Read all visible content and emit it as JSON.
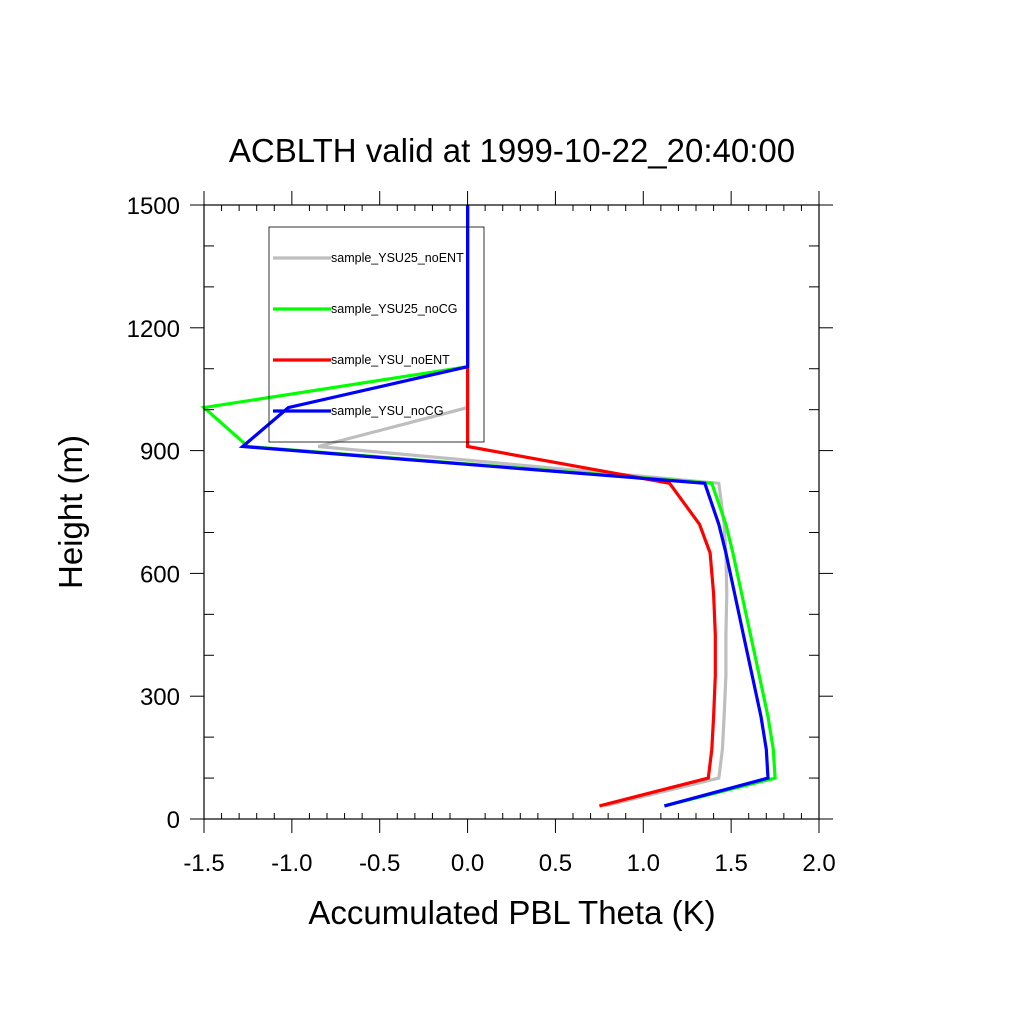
{
  "chart_data": {
    "type": "line",
    "title": "ACBLTH valid at 1999-10-22_20:40:00",
    "xlabel": "Accumulated PBL Theta (K)",
    "ylabel": "Height (m)",
    "xlim": [
      -1.5,
      2.0
    ],
    "ylim": [
      0,
      1500
    ],
    "xticks": [
      -1.5,
      -1.0,
      -0.5,
      0.0,
      0.5,
      1.0,
      1.5,
      2.0
    ],
    "xtick_labels": [
      "-1.5",
      "-1.0",
      "-0.5",
      "0.0",
      "0.5",
      "1.0",
      "1.5",
      "2.0"
    ],
    "yticks": [
      0,
      300,
      600,
      900,
      1200,
      1500
    ],
    "ytick_labels": [
      "0",
      "300",
      "600",
      "900",
      "1200",
      "1500"
    ],
    "grid": false,
    "legend_position": "top-left",
    "series": [
      {
        "name": "sample_YSU25_noENT",
        "color": "#bebebe",
        "points": [
          [
            0.78,
            32
          ],
          [
            1.43,
            100
          ],
          [
            1.45,
            170
          ],
          [
            1.46,
            250
          ],
          [
            1.47,
            350
          ],
          [
            1.47,
            450
          ],
          [
            1.475,
            550
          ],
          [
            1.47,
            650
          ],
          [
            1.46,
            720
          ],
          [
            1.43,
            820
          ],
          [
            -0.85,
            910
          ],
          [
            0.0,
            1005
          ],
          [
            0.0,
            1105
          ],
          [
            0.0,
            1500
          ]
        ]
      },
      {
        "name": "sample_YSU25_noCG",
        "color": "#00ff00",
        "points": [
          [
            1.12,
            32
          ],
          [
            1.75,
            100
          ],
          [
            1.74,
            170
          ],
          [
            1.71,
            250
          ],
          [
            1.66,
            350
          ],
          [
            1.61,
            450
          ],
          [
            1.56,
            550
          ],
          [
            1.51,
            650
          ],
          [
            1.47,
            720
          ],
          [
            1.39,
            820
          ],
          [
            -1.25,
            910
          ],
          [
            -1.5,
            1005
          ],
          [
            0.0,
            1105
          ],
          [
            0.0,
            1500
          ]
        ]
      },
      {
        "name": "sample_YSU_noENT",
        "color": "#ff0000",
        "points": [
          [
            0.75,
            32
          ],
          [
            1.37,
            100
          ],
          [
            1.39,
            170
          ],
          [
            1.4,
            250
          ],
          [
            1.41,
            350
          ],
          [
            1.41,
            450
          ],
          [
            1.4,
            550
          ],
          [
            1.38,
            650
          ],
          [
            1.32,
            720
          ],
          [
            1.15,
            820
          ],
          [
            0.0,
            910
          ],
          [
            0.0,
            1005
          ],
          [
            0.0,
            1105
          ],
          [
            0.0,
            1500
          ]
        ]
      },
      {
        "name": "sample_YSU_noCG",
        "color": "#0000ff",
        "points": [
          [
            1.12,
            32
          ],
          [
            1.71,
            100
          ],
          [
            1.7,
            170
          ],
          [
            1.67,
            250
          ],
          [
            1.62,
            350
          ],
          [
            1.57,
            450
          ],
          [
            1.52,
            550
          ],
          [
            1.47,
            650
          ],
          [
            1.43,
            720
          ],
          [
            1.35,
            820
          ],
          [
            -1.28,
            910
          ],
          [
            -1.02,
            1005
          ],
          [
            0.0,
            1105
          ],
          [
            0.0,
            1500
          ]
        ]
      }
    ]
  }
}
